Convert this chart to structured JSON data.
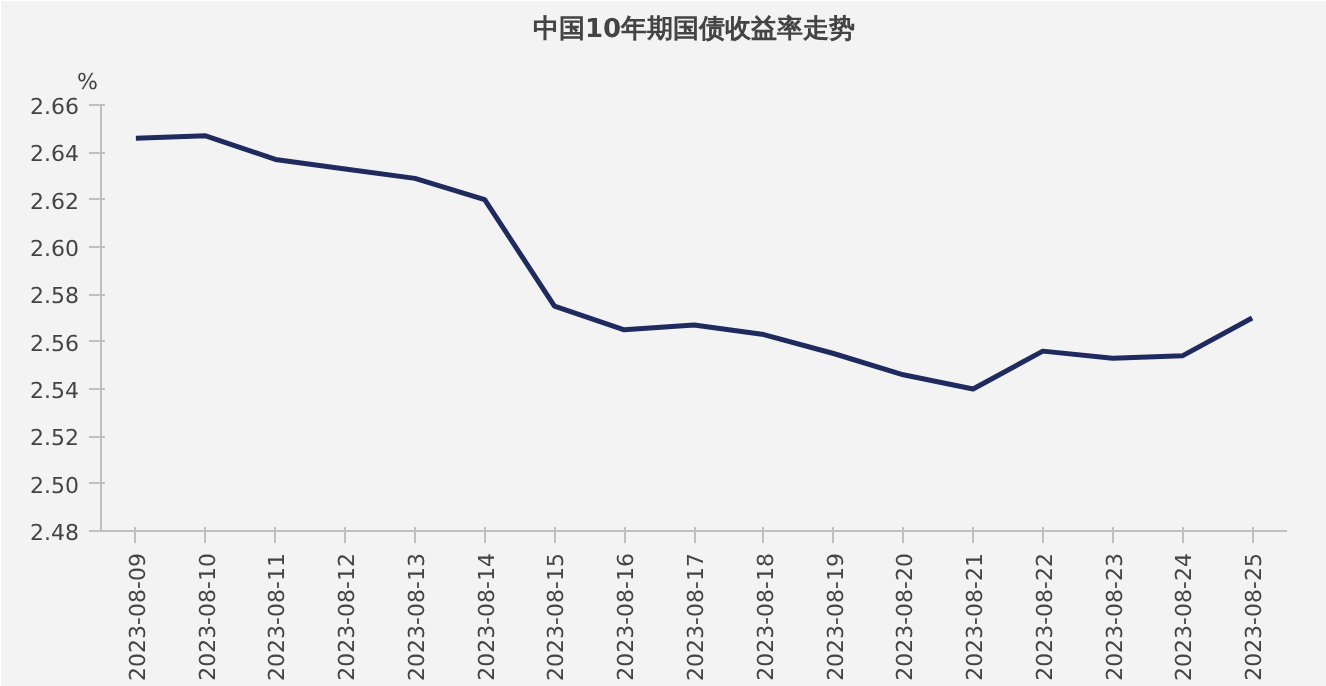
{
  "chart_data": {
    "type": "line",
    "title": "中国10年期国债收益率走势",
    "ylabel": "%",
    "categories": [
      "2023-08-09",
      "2023-08-10",
      "2023-08-11",
      "2023-08-12",
      "2023-08-13",
      "2023-08-14",
      "2023-08-15",
      "2023-08-16",
      "2023-08-17",
      "2023-08-18",
      "2023-08-19",
      "2023-08-20",
      "2023-08-21",
      "2023-08-22",
      "2023-08-23",
      "2023-08-24",
      "2023-08-25"
    ],
    "series": [
      {
        "color": "#1f2a5e",
        "values": [
          2.646,
          2.647,
          2.637,
          2.633,
          2.629,
          2.62,
          2.575,
          2.565,
          2.567,
          2.563,
          2.555,
          2.546,
          2.54,
          2.556,
          2.553,
          2.554,
          2.57
        ]
      }
    ],
    "ylim": [
      2.48,
      2.66
    ],
    "yticks": [
      2.48,
      {
        "value": 2.5,
        "label": "2.50"
      },
      2.52,
      2.54,
      2.56,
      2.58,
      {
        "value": 2.6,
        "label": "2.60"
      },
      2.62,
      2.64,
      2.66
    ],
    "grid": false,
    "marker": "none",
    "line_style": "solid"
  }
}
